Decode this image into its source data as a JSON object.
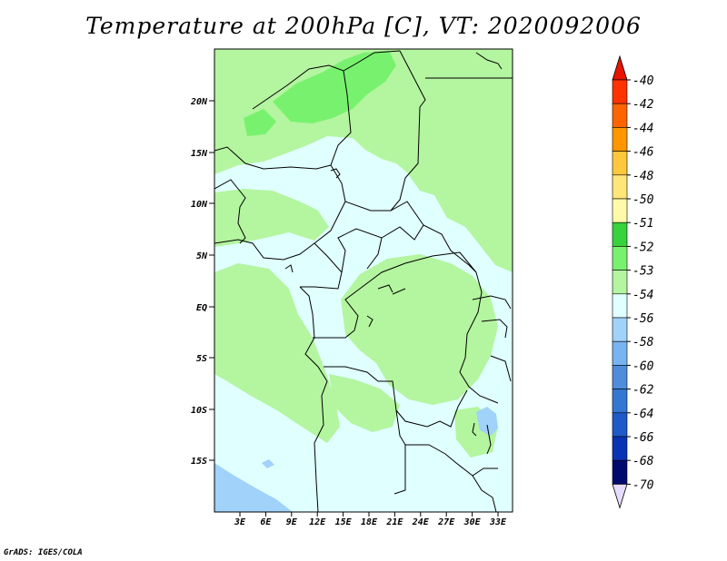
{
  "title": "Temperature at 200hPa [C], VT: 2020092006",
  "credit": "GrADS: IGES/COLA",
  "map": {
    "lat_labels": [
      "20N",
      "15N",
      "10N",
      "5N",
      "EQ",
      "5S",
      "10S",
      "15S"
    ],
    "lon_labels": [
      "3E",
      "6E",
      "9E",
      "12E",
      "15E",
      "18E",
      "21E",
      "24E",
      "27E",
      "30E",
      "33E"
    ],
    "colors": {
      "base": "#e0ffff",
      "light_green": "#b4f5a0",
      "mid_green": "#78f26e",
      "light_blue": "#a0d2fa"
    }
  },
  "colorbar": {
    "labels": [
      "-40",
      "-42",
      "-44",
      "-46",
      "-48",
      "-50",
      "-51",
      "-52",
      "-53",
      "-54",
      "-56",
      "-58",
      "-60",
      "-62",
      "-64",
      "-66",
      "-68",
      "-70"
    ],
    "colors": [
      "#e61400",
      "#ff3200",
      "#ff6400",
      "#ff9600",
      "#ffc83c",
      "#ffe678",
      "#fffaaa",
      "#37d23c",
      "#78f26e",
      "#b4f5a0",
      "#e0ffff",
      "#a0d2fa",
      "#78b4f0",
      "#508cdc",
      "#3278d2",
      "#1e5ac8",
      "#0a32b4",
      "#000a6e",
      "#e6dcff"
    ]
  }
}
